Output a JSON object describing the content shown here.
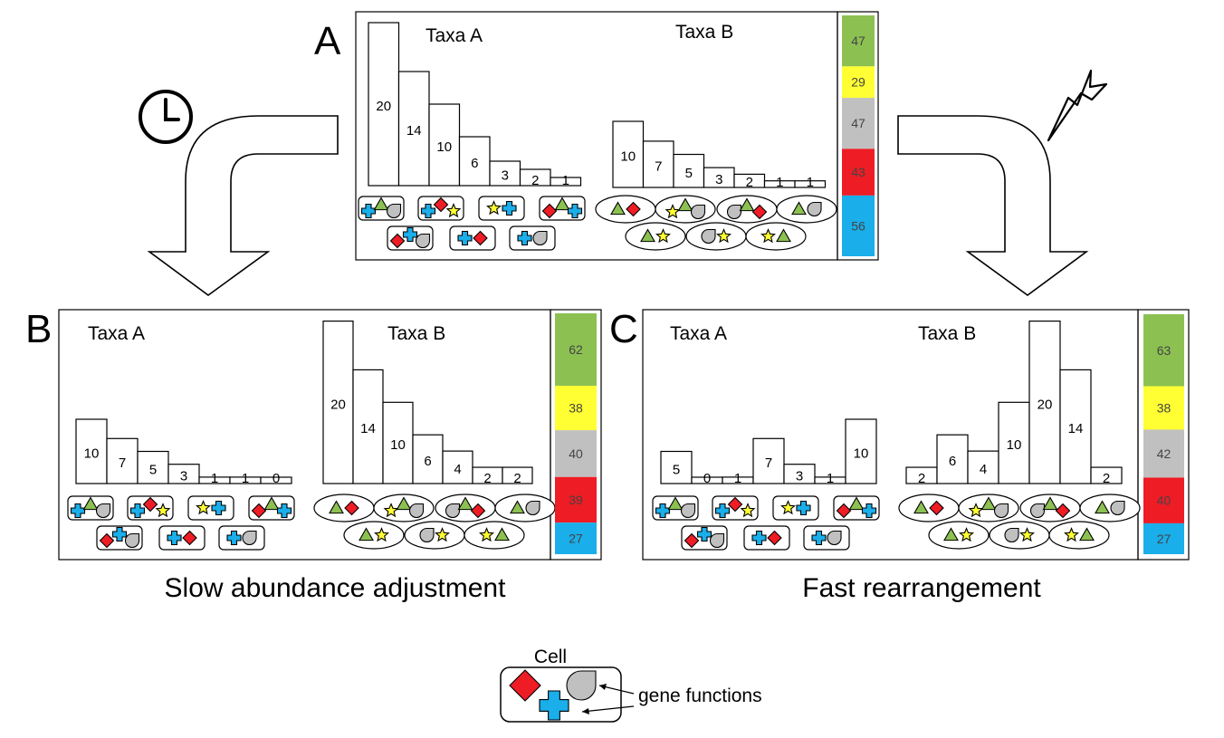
{
  "panels": [
    {
      "letter": "A",
      "taxa": [
        {
          "name": "Taxa A",
          "bars": [
            20,
            14,
            10,
            6,
            3,
            2,
            1
          ]
        },
        {
          "name": "Taxa B",
          "bars": [
            10,
            7,
            5,
            3,
            2,
            1,
            1
          ]
        }
      ],
      "functions": [
        47,
        29,
        47,
        43,
        56
      ],
      "caption": ""
    },
    {
      "letter": "B",
      "taxa": [
        {
          "name": "Taxa A",
          "bars": [
            10,
            7,
            5,
            3,
            1,
            1,
            0
          ]
        },
        {
          "name": "Taxa B",
          "bars": [
            20,
            14,
            10,
            6,
            4,
            2,
            2
          ]
        }
      ],
      "functions": [
        62,
        38,
        40,
        39,
        27
      ],
      "caption": "Slow abundance adjustment"
    },
    {
      "letter": "C",
      "taxa": [
        {
          "name": "Taxa A",
          "bars": [
            5,
            0,
            1,
            7,
            3,
            1,
            10
          ]
        },
        {
          "name": "Taxa B",
          "bars": [
            2,
            6,
            4,
            10,
            20,
            14,
            2
          ]
        }
      ],
      "functions": [
        63,
        38,
        42,
        40,
        27
      ],
      "caption": "Fast rearrangement"
    }
  ],
  "function_colors": [
    "#8cc152",
    "#ffff33",
    "#c0c0c0",
    "#ee1c25",
    "#1aaeea"
  ],
  "function_names": [
    "triangle",
    "star",
    "drop",
    "diamond",
    "plus"
  ],
  "cells_taxa_a": [
    [
      "plus",
      "triangle",
      "drop"
    ],
    [
      "plus",
      "diamond",
      "star"
    ],
    [
      "star",
      "plus"
    ],
    [
      "diamond",
      "triangle",
      "plus"
    ],
    [
      "diamond",
      "plus",
      "drop"
    ],
    [
      "plus",
      "diamond"
    ],
    [
      "plus",
      "drop"
    ]
  ],
  "cells_taxa_b": [
    [
      "triangle",
      "diamond"
    ],
    [
      "star",
      "triangle",
      "drop"
    ],
    [
      "drop",
      "triangle",
      "diamond"
    ],
    [
      "triangle",
      "drop"
    ],
    [
      "triangle",
      "star"
    ],
    [
      "drop",
      "star"
    ],
    [
      "star",
      "triangle"
    ]
  ],
  "legend": {
    "title": "Cell",
    "arrow_label": "gene functions"
  },
  "icons": {
    "left_arrow": "clock-icon",
    "right_arrow": "lightning-icon"
  }
}
